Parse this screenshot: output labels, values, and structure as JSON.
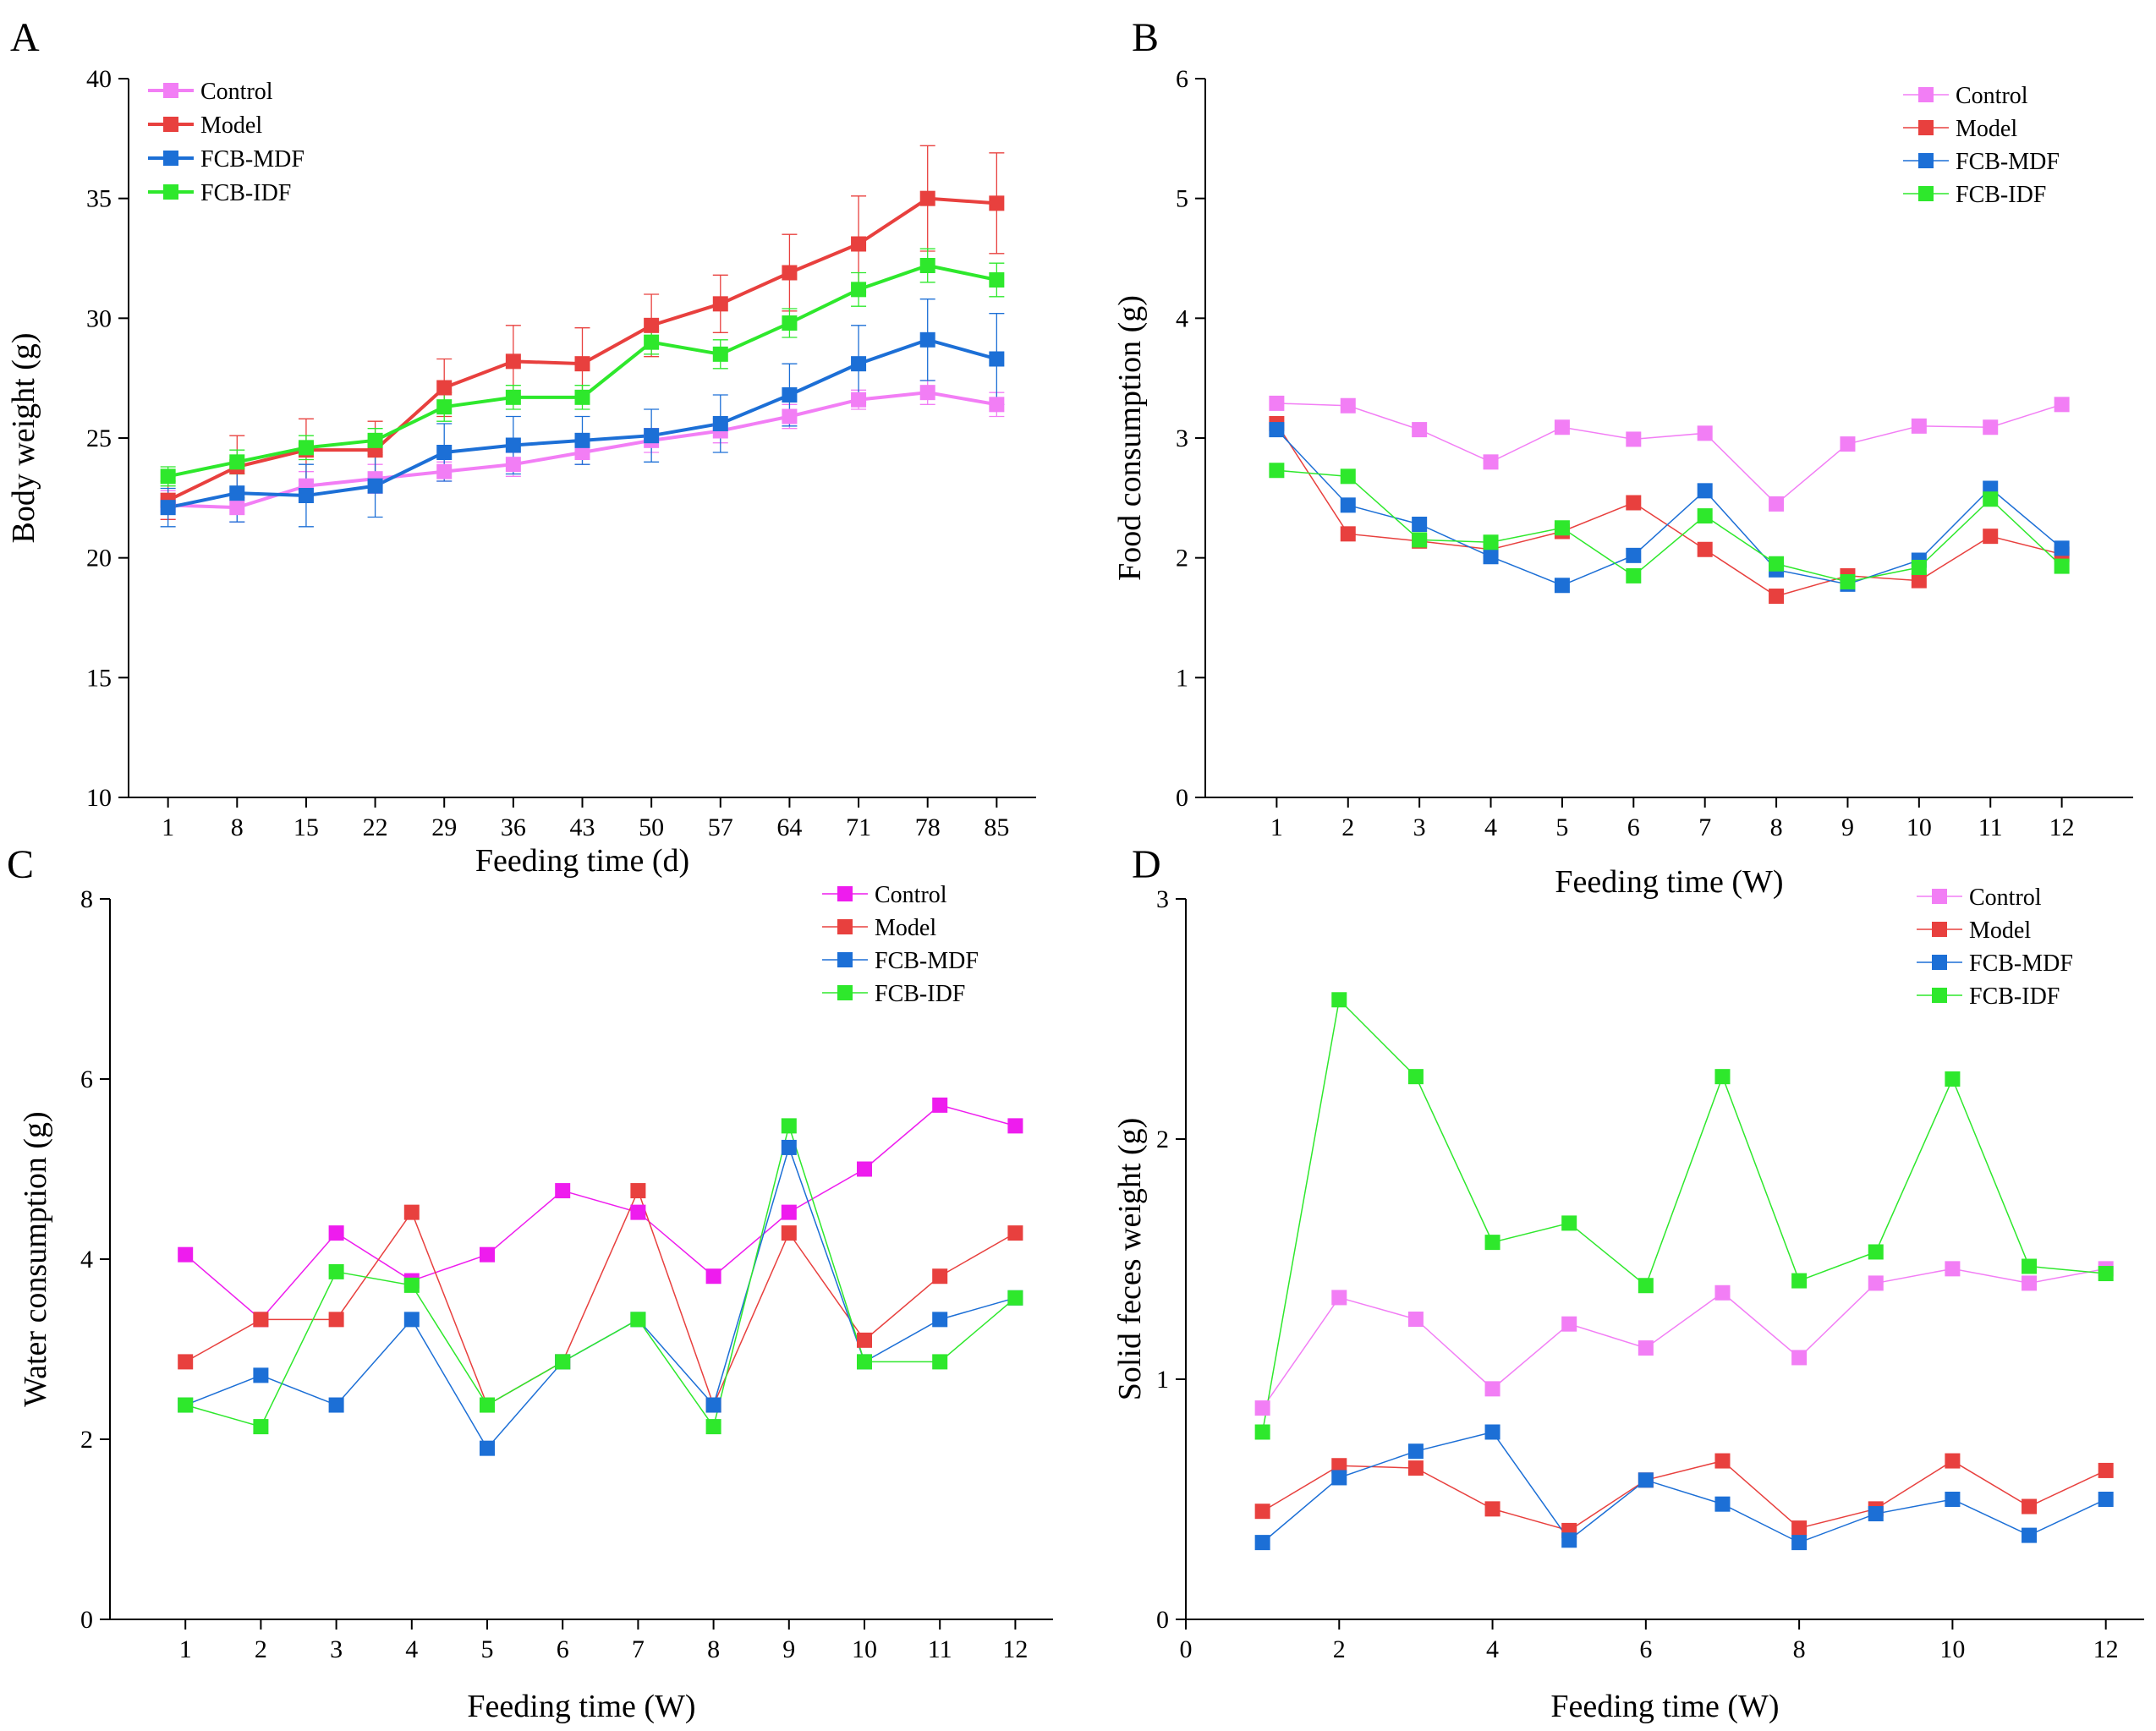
{
  "chart_data": [
    {
      "panel": "A",
      "type": "line",
      "xlabel": "Feeding time (d)",
      "ylabel": "Body weight (g)",
      "x": [
        1,
        8,
        15,
        22,
        29,
        36,
        43,
        50,
        57,
        64,
        71,
        78,
        85
      ],
      "xlim": [
        -3,
        89
      ],
      "ylim": [
        10,
        40
      ],
      "yticks": [
        10,
        15,
        20,
        25,
        30,
        35,
        40
      ],
      "legend_position": "top-left",
      "series": [
        {
          "name": "Control",
          "color": "#f27ef5",
          "values": [
            22.2,
            22.1,
            23.0,
            23.3,
            23.6,
            23.9,
            24.4,
            24.9,
            25.3,
            25.9,
            26.6,
            26.9,
            26.4
          ],
          "errors": [
            0.6,
            0.6,
            0.6,
            0.6,
            0.4,
            0.5,
            0.5,
            0.5,
            0.5,
            0.5,
            0.4,
            0.5,
            0.5
          ]
        },
        {
          "name": "Model",
          "color": "#e8403e",
          "values": [
            22.4,
            23.8,
            24.5,
            24.5,
            27.1,
            28.2,
            28.1,
            29.7,
            30.6,
            31.9,
            33.1,
            35.0,
            34.8
          ],
          "errors": [
            0.8,
            1.3,
            1.3,
            1.2,
            1.2,
            1.5,
            1.5,
            1.3,
            1.2,
            1.6,
            2.0,
            2.2,
            2.1
          ]
        },
        {
          "name": "FCB-MDF",
          "color": "#1c6fd6",
          "values": [
            22.1,
            22.7,
            22.6,
            23.0,
            24.4,
            24.7,
            24.9,
            25.1,
            25.6,
            26.8,
            28.1,
            29.1,
            28.3
          ],
          "errors": [
            0.8,
            1.2,
            1.3,
            1.3,
            1.2,
            1.2,
            1.0,
            1.1,
            1.2,
            1.3,
            1.6,
            1.7,
            1.9
          ]
        },
        {
          "name": "FCB-IDF",
          "color": "#2ee82c",
          "values": [
            23.4,
            24.0,
            24.6,
            24.9,
            26.3,
            26.7,
            26.7,
            29.0,
            28.5,
            29.8,
            31.2,
            32.2,
            31.6
          ],
          "errors": [
            0.4,
            0.5,
            0.5,
            0.5,
            0.6,
            0.5,
            0.5,
            0.5,
            0.6,
            0.6,
            0.7,
            0.7,
            0.7
          ]
        }
      ]
    },
    {
      "panel": "B",
      "type": "line",
      "xlabel": "Feeding time (W)",
      "ylabel": "Food consumption (g)",
      "x": [
        1,
        2,
        3,
        4,
        5,
        6,
        7,
        8,
        9,
        10,
        11,
        12
      ],
      "xlim": [
        0,
        13
      ],
      "ylim": [
        0,
        6
      ],
      "yticks": [
        0,
        1,
        2,
        3,
        4,
        5,
        6
      ],
      "legend_position": "top-right",
      "series": [
        {
          "name": "Control",
          "color": "#f27ef5",
          "values": [
            3.29,
            3.27,
            3.07,
            2.8,
            3.09,
            2.99,
            3.04,
            2.45,
            2.95,
            3.1,
            3.09,
            3.28
          ]
        },
        {
          "name": "Model",
          "color": "#e8403e",
          "values": [
            3.12,
            2.2,
            2.14,
            2.07,
            2.22,
            2.46,
            2.07,
            1.68,
            1.85,
            1.81,
            2.18,
            2.03
          ]
        },
        {
          "name": "FCB-MDF",
          "color": "#1c6fd6",
          "values": [
            3.07,
            2.44,
            2.28,
            2.01,
            1.77,
            2.02,
            2.56,
            1.9,
            1.78,
            1.98,
            2.58,
            2.08
          ]
        },
        {
          "name": "FCB-IDF",
          "color": "#2ee82c",
          "values": [
            2.73,
            2.68,
            2.15,
            2.13,
            2.25,
            1.85,
            2.35,
            1.95,
            1.8,
            1.92,
            2.49,
            1.93
          ]
        }
      ]
    },
    {
      "panel": "C",
      "type": "line",
      "xlabel": "Feeding time (W)",
      "ylabel": "Water consumption (g)",
      "x": [
        1,
        2,
        3,
        4,
        5,
        6,
        7,
        8,
        9,
        10,
        11,
        12
      ],
      "xlim": [
        0,
        12.5
      ],
      "ylim": [
        0,
        8
      ],
      "yticks": [
        0,
        2,
        4,
        6,
        8
      ],
      "legend_position": "top-right",
      "series": [
        {
          "name": "Control",
          "color": "#ee1cee",
          "values": [
            4.05,
            3.33,
            4.29,
            3.76,
            4.05,
            4.76,
            4.52,
            3.81,
            4.52,
            5.0,
            5.71,
            5.48
          ]
        },
        {
          "name": "Model",
          "color": "#e8403e",
          "values": [
            2.86,
            3.33,
            3.33,
            4.52,
            2.38,
            2.86,
            4.76,
            2.38,
            4.29,
            3.1,
            3.81,
            4.29
          ]
        },
        {
          "name": "FCB-MDF",
          "color": "#1c6fd6",
          "values": [
            2.38,
            2.71,
            2.38,
            3.33,
            1.9,
            2.86,
            3.33,
            2.38,
            5.24,
            2.86,
            3.33,
            3.57
          ]
        },
        {
          "name": "FCB-IDF",
          "color": "#2ee82c",
          "values": [
            2.38,
            2.14,
            3.86,
            3.71,
            2.38,
            2.86,
            3.33,
            2.14,
            5.48,
            2.86,
            2.86,
            3.57
          ]
        }
      ]
    },
    {
      "panel": "D",
      "type": "line",
      "xlabel": "Feeding time (W)",
      "ylabel": "Solid feces weight (g)",
      "x": [
        1,
        2,
        3,
        4,
        5,
        6,
        7,
        8,
        9,
        10,
        11,
        12
      ],
      "xlim": [
        0,
        12.5
      ],
      "ylim": [
        0,
        3
      ],
      "yticks": [
        0,
        1,
        2,
        3
      ],
      "xticks": [
        0,
        2,
        4,
        6,
        8,
        10,
        12
      ],
      "legend_position": "top-right",
      "series": [
        {
          "name": "Control",
          "color": "#f27ef5",
          "values": [
            0.88,
            1.34,
            1.25,
            0.96,
            1.23,
            1.13,
            1.36,
            1.09,
            1.4,
            1.46,
            1.4,
            1.46
          ]
        },
        {
          "name": "Model",
          "color": "#e8403e",
          "values": [
            0.45,
            0.64,
            0.63,
            0.46,
            0.37,
            0.58,
            0.66,
            0.38,
            0.46,
            0.66,
            0.47,
            0.62
          ]
        },
        {
          "name": "FCB-MDF",
          "color": "#1c6fd6",
          "values": [
            0.32,
            0.59,
            0.7,
            0.78,
            0.33,
            0.58,
            0.48,
            0.32,
            0.44,
            0.5,
            0.35,
            0.5
          ]
        },
        {
          "name": "FCB-IDF",
          "color": "#2ee82c",
          "values": [
            0.78,
            2.58,
            2.26,
            1.57,
            1.65,
            1.39,
            2.26,
            1.41,
            1.53,
            2.25,
            1.47,
            1.44
          ]
        }
      ]
    }
  ]
}
